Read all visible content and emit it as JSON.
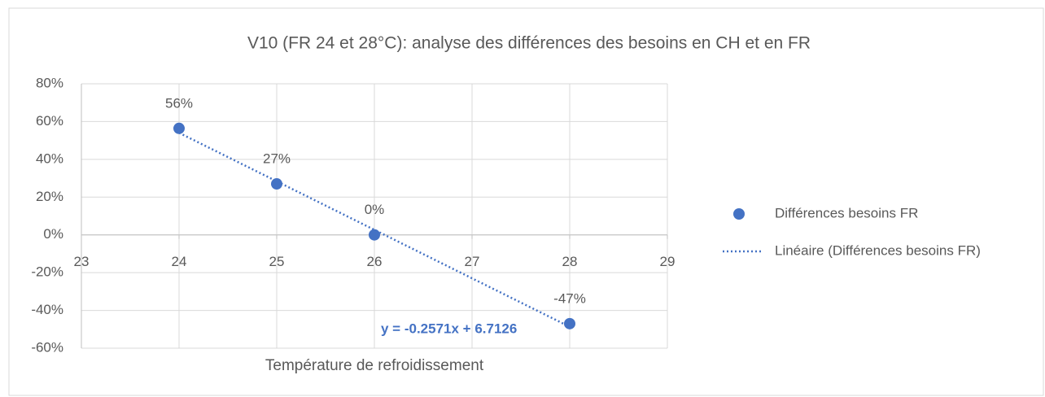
{
  "chart_data": {
    "type": "scatter",
    "title": "V10 (FR 24 et 28°C): analyse des différences des besoins en CH et en FR",
    "x_label": "Température de refroidissement",
    "x": [
      24,
      25,
      26,
      28
    ],
    "series": [
      {
        "name": "Différences besoins FR",
        "color": "#4472c4",
        "values": [
          56.4,
          27,
          0,
          -47
        ],
        "value_labels": [
          "56%",
          "27%",
          "0%",
          "-47%"
        ]
      }
    ],
    "trendline": {
      "name": "Linéaire (Différences besoins FR)",
      "type": "linear",
      "equation": "y = -0.2571x + 6.7126",
      "color": "#4472c4"
    },
    "xlim": [
      23,
      29
    ],
    "xticks": [
      23,
      24,
      25,
      26,
      27,
      28,
      29
    ],
    "ylim": [
      -60,
      80
    ],
    "yticks": [
      {
        "value": -60,
        "label": "-60%"
      },
      {
        "value": -40,
        "label": "-40%"
      },
      {
        "value": -20,
        "label": "-20%"
      },
      {
        "value": 0,
        "label": "0%"
      },
      {
        "value": 20,
        "label": "20%"
      },
      {
        "value": 40,
        "label": "40%"
      },
      {
        "value": 60,
        "label": "60%"
      },
      {
        "value": 80,
        "label": "80%"
      }
    ],
    "grid": true,
    "legend": "right"
  }
}
